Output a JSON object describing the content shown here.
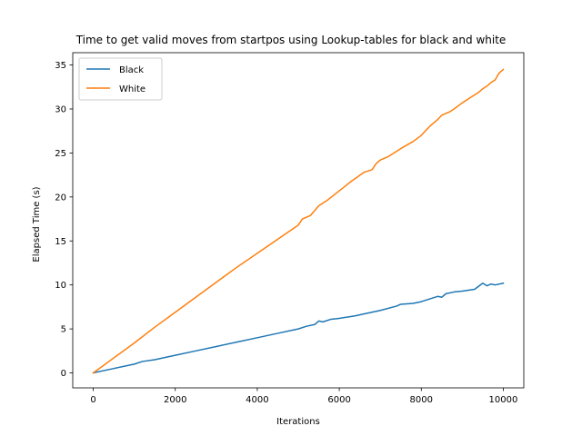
{
  "chart_data": {
    "type": "line",
    "title": "Time to get valid moves from startpos using Lookup-tables for black and white",
    "xlabel": "Iterations",
    "ylabel": "Elapsed Time (s)",
    "xlim": [
      -500,
      10500
    ],
    "ylim": [
      -1.7,
      36.4
    ],
    "xticks": [
      0,
      2000,
      4000,
      6000,
      8000,
      10000
    ],
    "yticks": [
      0,
      5,
      10,
      15,
      20,
      25,
      30,
      35
    ],
    "grid": false,
    "legend_position": "top-left",
    "series": [
      {
        "name": "Black",
        "color": "#1f77b4",
        "x": [
          0,
          500,
          1000,
          1200,
          1500,
          2000,
          2500,
          3000,
          3500,
          4000,
          4500,
          5000,
          5200,
          5400,
          5500,
          5600,
          5800,
          6000,
          6400,
          6600,
          7000,
          7400,
          7500,
          7800,
          8000,
          8200,
          8400,
          8500,
          8600,
          8800,
          9000,
          9300,
          9500,
          9600,
          9700,
          9800,
          10000
        ],
        "y": [
          0,
          0.5,
          1.0,
          1.3,
          1.5,
          2.0,
          2.5,
          3.0,
          3.5,
          4.0,
          4.5,
          5.0,
          5.3,
          5.5,
          5.9,
          5.8,
          6.1,
          6.2,
          6.5,
          6.7,
          7.1,
          7.6,
          7.8,
          7.9,
          8.1,
          8.4,
          8.7,
          8.6,
          9.0,
          9.2,
          9.3,
          9.5,
          10.2,
          9.9,
          10.1,
          10.0,
          10.2
        ]
      },
      {
        "name": "White",
        "color": "#ff7f0e",
        "x": [
          0,
          500,
          1000,
          1500,
          2000,
          2500,
          3000,
          3500,
          4000,
          4500,
          5000,
          5100,
          5300,
          5500,
          5700,
          6000,
          6300,
          6600,
          6800,
          6900,
          7000,
          7200,
          7500,
          7800,
          8000,
          8200,
          8400,
          8500,
          8700,
          8800,
          9000,
          9200,
          9400,
          9500,
          9600,
          9700,
          9800,
          9900,
          10000
        ],
        "y": [
          0,
          1.7,
          3.4,
          5.2,
          6.9,
          8.6,
          10.3,
          12.0,
          13.6,
          15.2,
          16.8,
          17.5,
          17.9,
          19.0,
          19.6,
          20.7,
          21.8,
          22.8,
          23.1,
          23.8,
          24.2,
          24.6,
          25.5,
          26.3,
          27.0,
          28.0,
          28.8,
          29.3,
          29.7,
          30.0,
          30.7,
          31.3,
          31.9,
          32.3,
          32.6,
          33.0,
          33.3,
          34.1,
          34.5
        ]
      }
    ]
  }
}
